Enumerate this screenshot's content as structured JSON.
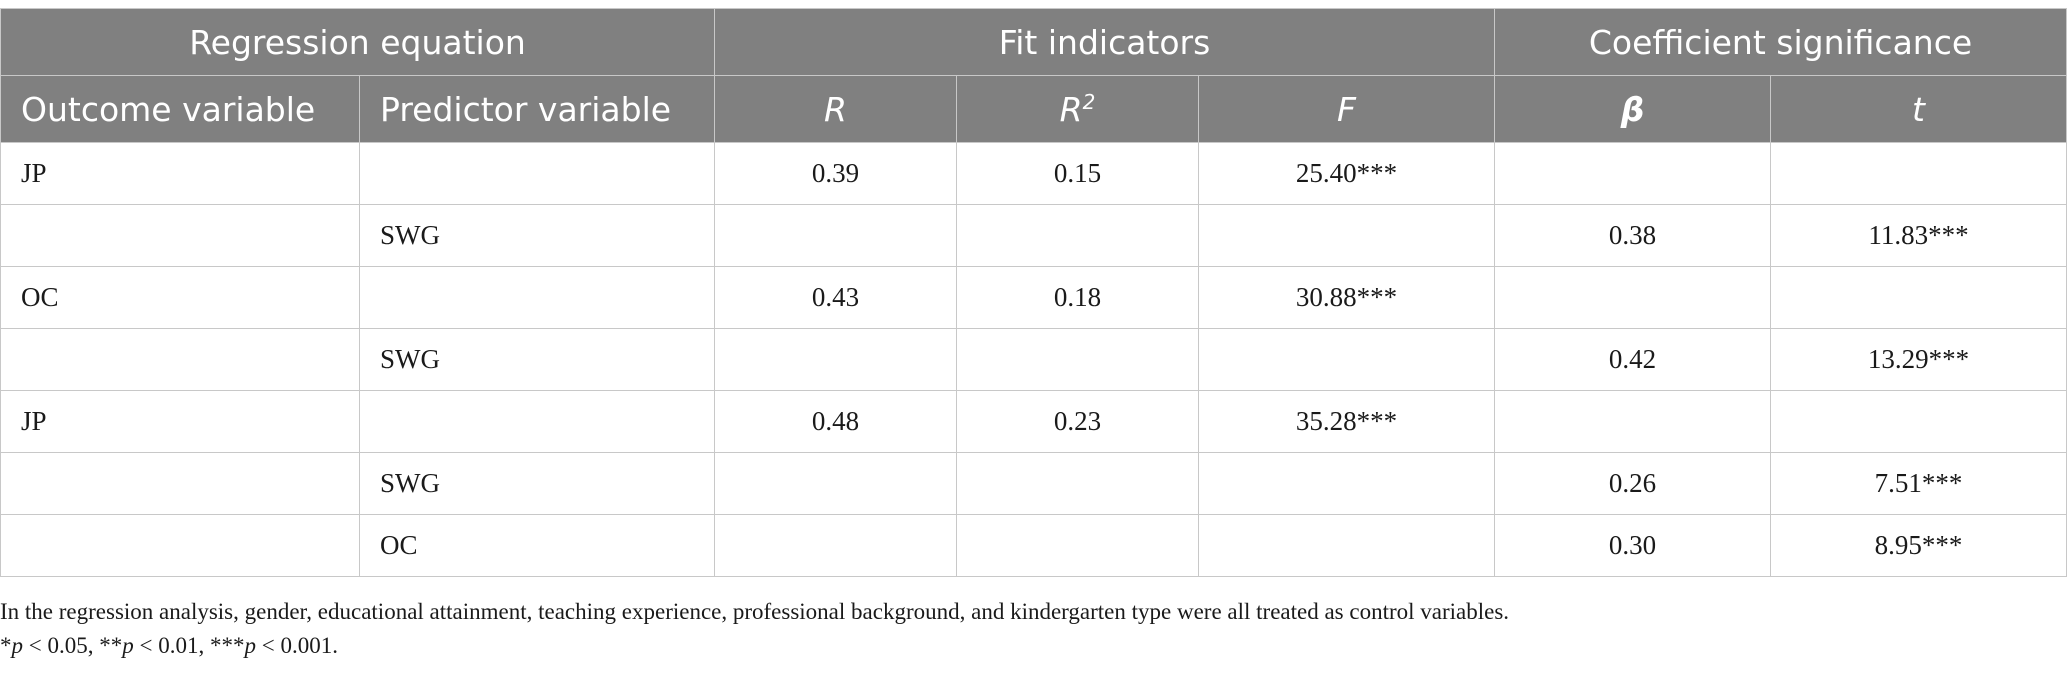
{
  "table": {
    "group_headers": {
      "regression_equation": "Regression equation",
      "fit_indicators": "Fit indicators",
      "coefficient_significance": "Coefficient significance"
    },
    "column_headers": {
      "outcome_variable": "Outcome variable",
      "predictor_variable": "Predictor variable",
      "r": "R",
      "r2_base": "R",
      "r2_sup": "2",
      "f": "F",
      "beta": "β",
      "t": "t"
    },
    "rows": [
      {
        "outcome": "JP",
        "predictor": "",
        "r": "0.39",
        "r2": "0.15",
        "f": "25.40***",
        "beta": "",
        "t": ""
      },
      {
        "outcome": "",
        "predictor": "SWG",
        "r": "",
        "r2": "",
        "f": "",
        "beta": "0.38",
        "t": "11.83***"
      },
      {
        "outcome": "OC",
        "predictor": "",
        "r": "0.43",
        "r2": "0.18",
        "f": "30.88***",
        "beta": "",
        "t": ""
      },
      {
        "outcome": "",
        "predictor": "SWG",
        "r": "",
        "r2": "",
        "f": "",
        "beta": "0.42",
        "t": "13.29***"
      },
      {
        "outcome": "JP",
        "predictor": "",
        "r": "0.48",
        "r2": "0.23",
        "f": "35.28***",
        "beta": "",
        "t": ""
      },
      {
        "outcome": "",
        "predictor": "SWG",
        "r": "",
        "r2": "",
        "f": "",
        "beta": "0.26",
        "t": "7.51***"
      },
      {
        "outcome": "",
        "predictor": "OC",
        "r": "",
        "r2": "",
        "f": "",
        "beta": "0.30",
        "t": "8.95***"
      }
    ]
  },
  "notes": {
    "control_note": "In the regression analysis, gender, educational attainment, teaching experience, professional background, and kindergarten type were all treated as control variables.",
    "significance": {
      "p1_prefix": "*",
      "p1_rest": " < 0.05, **",
      "p2_rest": " < 0.01, ***",
      "p3_rest": " < 0.001.",
      "p_letter": "p"
    }
  }
}
